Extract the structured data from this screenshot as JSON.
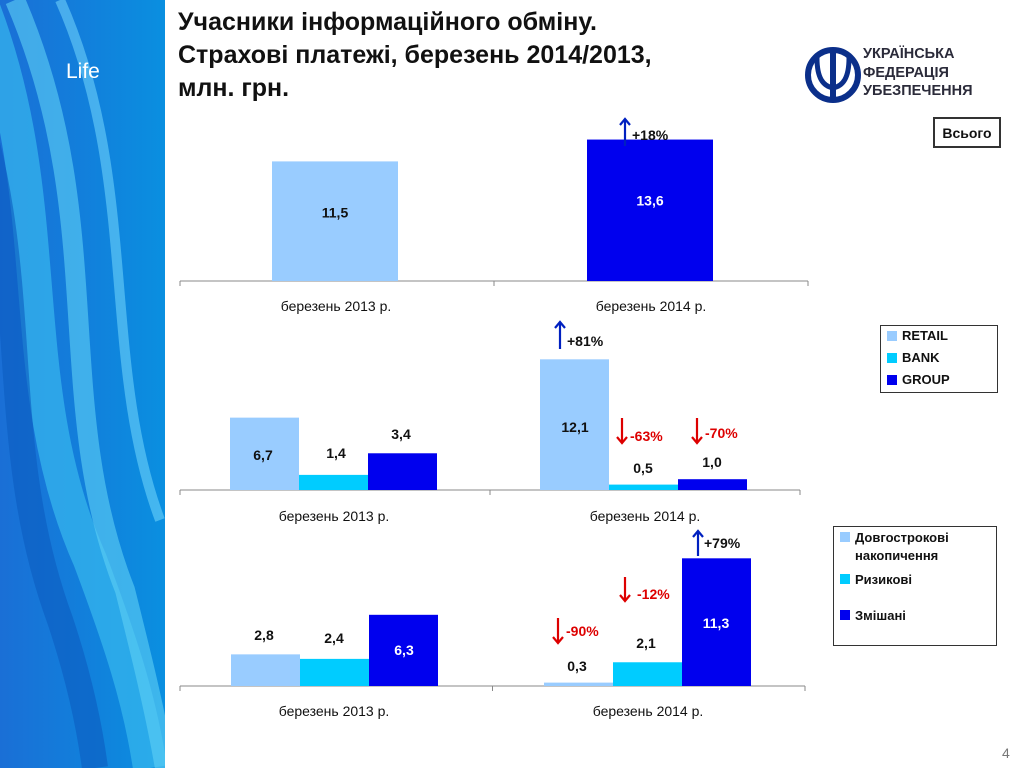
{
  "sidebar": {
    "label": "Life"
  },
  "title": "Учасники інформаційного обміну.\nСтрахові платежі, березень 2014/2013,\nмлн. грн.",
  "logo": {
    "icon": "trident-logo-icon",
    "text": "УКРАЇНСЬКА\nФЕДЕРАЦІЯ\nУБЕЗПЕЧЕННЯ",
    "color": "#0b2f8a"
  },
  "total_label": "Всього",
  "page_number": "4",
  "colors": {
    "light_blue": "#99ccff",
    "cyan": "#00ccff",
    "dark_blue": "#0000ee",
    "up_arrow": "#0020c0",
    "down_arrow": "#dd0000"
  },
  "chart_data": [
    {
      "type": "bar",
      "categories": [
        "березень 2013 р.",
        "березень 2014 р."
      ],
      "series": [
        {
          "values": [
            11.5,
            13.6
          ]
        }
      ],
      "data_labels": [
        "11,5",
        "13,6"
      ],
      "annotations": [
        {
          "text": "+18%",
          "direction": "up"
        }
      ]
    },
    {
      "type": "bar",
      "categories": [
        "березень 2013 р.",
        "березень 2014 р."
      ],
      "series": [
        {
          "name": "RETAIL",
          "values": [
            6.7,
            12.1
          ],
          "labels": [
            "6,7",
            "12,1"
          ]
        },
        {
          "name": "BANK",
          "values": [
            1.4,
            0.5
          ],
          "labels": [
            "1,4",
            "0,5"
          ]
        },
        {
          "name": "GROUP",
          "values": [
            3.4,
            1.0
          ],
          "labels": [
            "3,4",
            "1,0"
          ]
        }
      ],
      "legend_position": "right",
      "annotations": [
        {
          "text": "+81%",
          "direction": "up"
        },
        {
          "text": "-63%",
          "direction": "down"
        },
        {
          "text": "-70%",
          "direction": "down"
        }
      ]
    },
    {
      "type": "bar",
      "categories": [
        "березень 2013 р.",
        "березень 2014 р."
      ],
      "series": [
        {
          "name": "Довгострокові накопичення",
          "values": [
            2.8,
            0.3
          ],
          "labels": [
            "2,8",
            "0,3"
          ]
        },
        {
          "name": "Ризикові",
          "values": [
            2.4,
            2.1
          ],
          "labels": [
            "2,4",
            "2,1"
          ]
        },
        {
          "name": "Змішані",
          "values": [
            6.3,
            11.3
          ],
          "labels": [
            "6,3",
            "11,3"
          ]
        }
      ],
      "legend_position": "right",
      "annotations": [
        {
          "text": "+79%",
          "direction": "up"
        },
        {
          "text": "-12%",
          "direction": "down"
        },
        {
          "text": "-90%",
          "direction": "down"
        }
      ]
    }
  ]
}
